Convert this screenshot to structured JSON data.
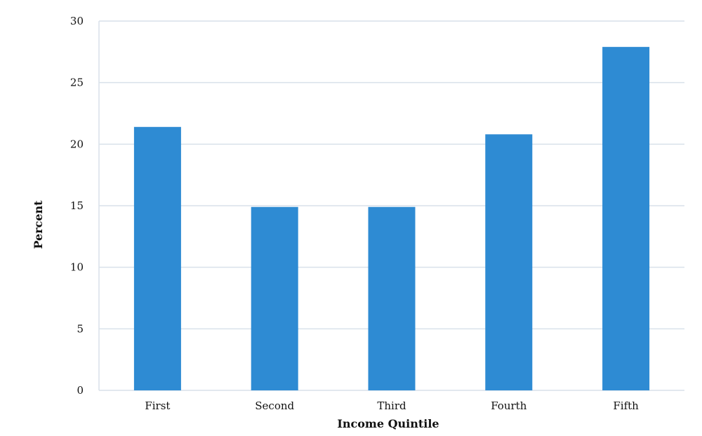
{
  "chart_data": {
    "type": "bar",
    "title": "",
    "xlabel": "Income Quintile",
    "ylabel": "Percent",
    "categories": [
      "First",
      "Second",
      "Third",
      "Fourth",
      "Fifth"
    ],
    "values": [
      21.4,
      14.9,
      14.9,
      20.8,
      27.9
    ],
    "ylim": [
      0,
      30
    ],
    "yticks": [
      0,
      5,
      10,
      15,
      20,
      25,
      30
    ],
    "grid": true,
    "legend": "none",
    "colors": {
      "bar": "#2E8BD3",
      "grid": "#D9E1EA",
      "axis": "#D9E1EA",
      "text": "#111111"
    }
  }
}
